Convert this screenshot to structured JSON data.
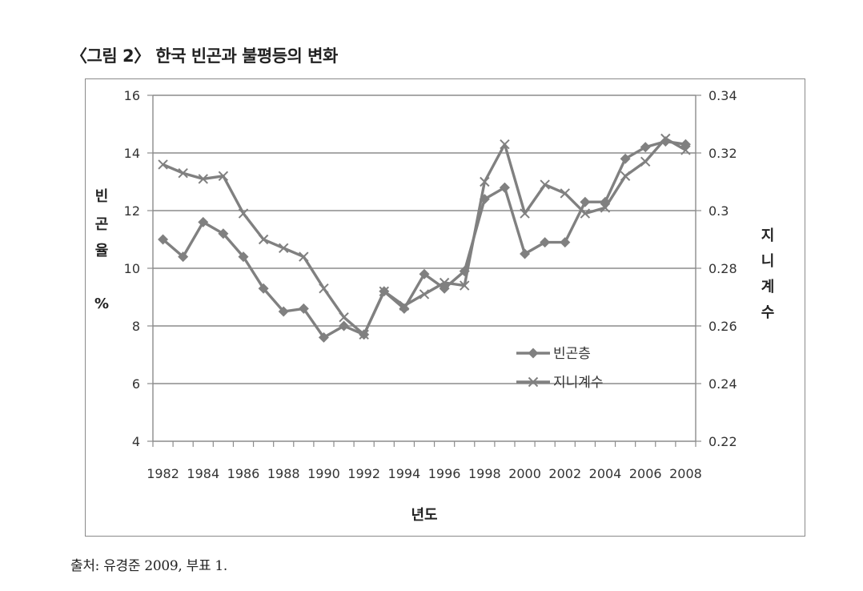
{
  "figure": {
    "title": "〈그림 2〉 한국 빈곤과 불평등의 변화",
    "source": "출처: 유경준 2009, 부표 1."
  },
  "colors": {
    "series": "#808080",
    "grid": "#8c8c8c",
    "axis": "#8c8c8c"
  },
  "chart_data": {
    "type": "line",
    "x": [
      1982,
      1983,
      1984,
      1985,
      1986,
      1987,
      1988,
      1989,
      1990,
      1991,
      1992,
      1993,
      1994,
      1995,
      1996,
      1997,
      1998,
      1999,
      2000,
      2001,
      2002,
      2003,
      2004,
      2005,
      2006,
      2007,
      2008
    ],
    "x_tick_labels": [
      "1982",
      "1984",
      "1986",
      "1988",
      "1990",
      "1992",
      "1994",
      "1996",
      "1998",
      "2000",
      "2002",
      "2004",
      "2006",
      "2008"
    ],
    "xlabel": "년도",
    "ylabel_left": [
      "빈",
      "곤",
      "율",
      "%"
    ],
    "ylabel_right": [
      "지",
      "니",
      "계",
      "수"
    ],
    "ylim_left": [
      4,
      16
    ],
    "ylim_right": [
      0.22,
      0.34
    ],
    "y_ticks_left": [
      "4",
      "6",
      "8",
      "10",
      "12",
      "14",
      "16"
    ],
    "y_ticks_right": [
      "0.22",
      "0.24",
      "0.26",
      "0.28",
      "0.3",
      "0.32",
      "0.34"
    ],
    "grid": true,
    "legend_position": "center-right",
    "series": [
      {
        "name": "빈곤층",
        "axis": "left",
        "marker": "diamond",
        "values": [
          11.0,
          10.4,
          11.6,
          11.2,
          10.4,
          9.3,
          8.5,
          8.6,
          7.6,
          8.0,
          7.7,
          9.2,
          8.6,
          9.8,
          9.3,
          9.9,
          12.4,
          12.8,
          10.5,
          10.9,
          10.9,
          12.3,
          12.3,
          13.8,
          14.2,
          14.4,
          14.3
        ]
      },
      {
        "name": "지니계수",
        "axis": "right",
        "marker": "x",
        "values": [
          0.316,
          0.313,
          0.311,
          0.312,
          0.299,
          0.29,
          0.287,
          0.284,
          0.273,
          0.263,
          0.257,
          0.272,
          0.267,
          0.271,
          0.275,
          0.274,
          0.31,
          0.323,
          0.299,
          0.309,
          0.306,
          0.299,
          0.301,
          0.312,
          0.317,
          0.325,
          0.321
        ]
      }
    ]
  }
}
